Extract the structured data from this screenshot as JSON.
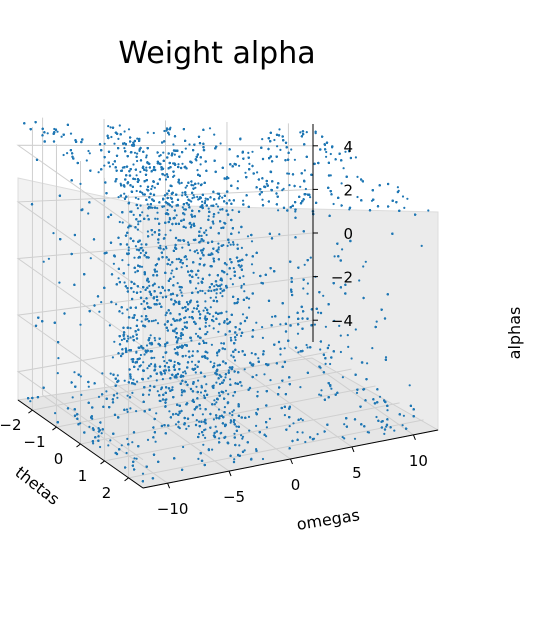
{
  "chart_data": {
    "type": "scatter",
    "projection": "3d",
    "title": "Weight alpha",
    "xlabel": "omegas",
    "ylabel": "thetas",
    "zlabel": "alphas",
    "x_ticks": [
      "−10",
      "−5",
      "0",
      "5",
      "10"
    ],
    "y_ticks": [
      "−2",
      "−1",
      "0",
      "1",
      "2"
    ],
    "z_ticks": [
      "4",
      "2",
      "0",
      "−2",
      "−4"
    ],
    "xlim": [
      -12,
      12
    ],
    "ylim": [
      -2.6,
      2.6
    ],
    "zlim": [
      -5,
      5
    ],
    "marker_color": "#1f77b4",
    "grid": true,
    "series": [
      {
        "points": [
          [
            -11,
            -2.0,
            4.5
          ],
          [
            -9,
            -1.5,
            4.8
          ],
          [
            -7,
            -0.5,
            4.2
          ],
          [
            -5,
            0.5,
            4.6
          ],
          [
            -3,
            1.5,
            4.9
          ],
          [
            -1,
            0.0,
            4.7
          ],
          [
            0,
            -1.0,
            4.9
          ],
          [
            1,
            1.0,
            4.8
          ],
          [
            3,
            2.0,
            4.5
          ],
          [
            6,
            0.0,
            4.7
          ],
          [
            9,
            -1.0,
            4.4
          ],
          [
            11,
            1.5,
            4.2
          ],
          [
            0,
            0.0,
            3.0
          ],
          [
            0,
            0.5,
            1.5
          ],
          [
            0,
            -0.5,
            0.0
          ],
          [
            0,
            0.3,
            -1.5
          ],
          [
            0,
            -0.2,
            -3.0
          ],
          [
            0,
            0.0,
            -4.5
          ],
          [
            -2,
            0.0,
            2.0
          ],
          [
            2,
            0.0,
            -2.0
          ],
          [
            -8,
            -2.0,
            2.0
          ],
          [
            -10,
            1.0,
            0.0
          ],
          [
            -6,
            2.0,
            -1.0
          ],
          [
            -9,
            0.0,
            -3.0
          ],
          [
            -4,
            1.5,
            -4.5
          ],
          [
            7,
            2.0,
            -2.0
          ],
          [
            9,
            -2.0,
            -3.5
          ],
          [
            4,
            -1.0,
            -4.0
          ],
          [
            10,
            1.0,
            -4.8
          ],
          [
            6,
            0.0,
            -1.0
          ],
          [
            -11,
            2.5,
            -4.8
          ],
          [
            -7,
            2.5,
            -4.5
          ],
          [
            -3,
            2.5,
            -4.8
          ],
          [
            3,
            2.0,
            -4.9
          ],
          [
            5,
            -2.0,
            1.0
          ],
          [
            8,
            1.0,
            2.5
          ],
          [
            -5,
            -2.5,
            0.0
          ]
        ]
      }
    ]
  }
}
